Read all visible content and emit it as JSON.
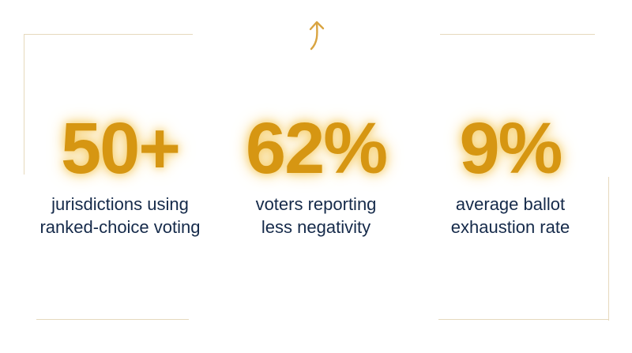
{
  "colors": {
    "accent": "#d69612",
    "accent_glow": "#f6cf6e",
    "text": "#152a4a",
    "frame": "#e6d9bd"
  },
  "header": {
    "icon": "up-arrow-icon"
  },
  "stats": [
    {
      "value": "50+",
      "label_line1": "jurisdictions using",
      "label_line2": "ranked-choice voting"
    },
    {
      "value": "62%",
      "label_line1": "voters reporting",
      "label_line2": "less negativity"
    },
    {
      "value": "9%",
      "label_line1": "average ballot",
      "label_line2": "exhaustion rate"
    }
  ]
}
